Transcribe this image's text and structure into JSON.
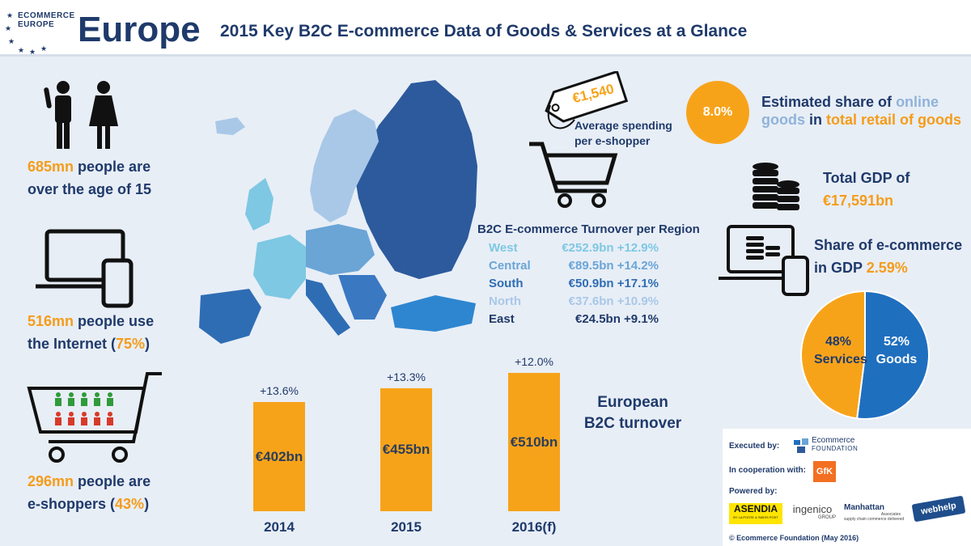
{
  "header": {
    "logo_line1": "ECOMMERCE",
    "logo_line2": "EUROPE",
    "title": "Europe",
    "subtitle": "2015 Key B2C E-commerce Data of Goods & Services at a Glance"
  },
  "stats": {
    "population": {
      "value": "685mn",
      "text1": " people are",
      "text2": "over the age of 15"
    },
    "internet": {
      "value": "516mn",
      "text1": " people use",
      "text2_pre": "the Internet (",
      "pct": "75%",
      "text2_post": ")"
    },
    "eshoppers": {
      "value": "296mn",
      "text1": " people are",
      "text2_pre": "e-shoppers (",
      "pct": "43%",
      "text2_post": ")"
    }
  },
  "spending": {
    "value": "€1,540",
    "label1": "Average spending",
    "label2": "per e-shopper"
  },
  "share": {
    "value": "8.0%",
    "line1_a": "Estimated share of ",
    "line1_b": "online",
    "line2_a": "goods",
    "line2_b": " in ",
    "line2_c": "total retail of goods"
  },
  "gdp": {
    "label": "Total GDP of",
    "value": "€17,591bn",
    "share_label1": "Share of e-commerce",
    "share_label2": "in GDP ",
    "share_value": "2.59%"
  },
  "regions": {
    "title": "B2C E-commerce Turnover per Region",
    "rows": [
      {
        "name": "West",
        "value": "€252.9bn +12.9%",
        "color": "#7ec8e3"
      },
      {
        "name": "Central",
        "value": "€89.5bn +14.2%",
        "color": "#6aa5d6"
      },
      {
        "name": "South",
        "value": "€50.9bn +17.1%",
        "color": "#2e6db4"
      },
      {
        "name": "North",
        "value": "€37.6bn +10.9%",
        "color": "#a9c8e8"
      },
      {
        "name": "East",
        "value": "€24.5bn +9.1%",
        "color": "#1f3a6b"
      }
    ]
  },
  "turnover_label1": "European",
  "turnover_label2": "B2C turnover",
  "chart_data": {
    "type": "bar",
    "categories": [
      "2014",
      "2015",
      "2016(f)"
    ],
    "values": [
      402,
      455,
      510
    ],
    "value_labels": [
      "€402bn",
      "€455bn",
      "€510bn"
    ],
    "growth_labels": [
      "+13.6%",
      "+13.3%",
      "+12.0%"
    ],
    "ylim": [
      0,
      560
    ]
  },
  "pie": {
    "services_pct": "48%",
    "services_label": "Services",
    "goods_pct": "52%",
    "goods_label": "Goods",
    "services_value": 48,
    "goods_value": 52,
    "services_color": "#f7a31a",
    "goods_color": "#1f6fbf"
  },
  "sponsors": {
    "executed_by": "Executed by:",
    "executed_name1": "Ecommerce",
    "executed_name2": "FOUNDATION",
    "cooperation": "In cooperation with:",
    "gfk": "GfK",
    "powered_by": "Powered by:",
    "asendia": "ASENDIA",
    "asendia_sub": "BY LA POSTE & SWISS POST",
    "ingenico": "ingenico",
    "ingenico_sub": "GROUP",
    "manhattan": "Manhattan",
    "manhattan_sub": "Associates",
    "manhattan_tag": "supply chain commerce delivered",
    "webhelp": "webhelp",
    "copyright": "© Ecommerce Foundation (May 2016)"
  }
}
